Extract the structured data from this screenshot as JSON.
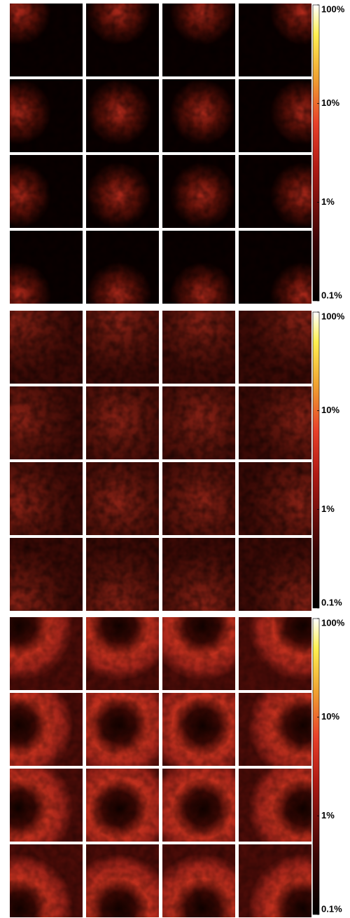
{
  "panels": [
    {
      "colorbar": {
        "scale": "log",
        "clim": [
          0.1,
          100
        ],
        "ticks": [
          {
            "value": 0.1,
            "label": "0.1%"
          },
          {
            "value": 1,
            "label": "1%"
          },
          {
            "value": 10,
            "label": "10%"
          },
          {
            "value": 100,
            "label": "100%"
          }
        ]
      }
    },
    {
      "colorbar": {
        "scale": "log",
        "clim": [
          0.1,
          100
        ],
        "ticks": [
          {
            "value": 0.1,
            "label": "0.1%"
          },
          {
            "value": 1,
            "label": "1%"
          },
          {
            "value": 10,
            "label": "10%"
          },
          {
            "value": 100,
            "label": "100%"
          }
        ]
      }
    },
    {
      "colorbar": {
        "scale": "log",
        "clim": [
          0.1,
          100
        ],
        "ticks": [
          {
            "value": 0.1,
            "label": "0.1%"
          },
          {
            "value": 1,
            "label": "1%"
          },
          {
            "value": 10,
            "label": "10%"
          },
          {
            "value": 100,
            "label": "100%"
          }
        ]
      }
    }
  ]
}
